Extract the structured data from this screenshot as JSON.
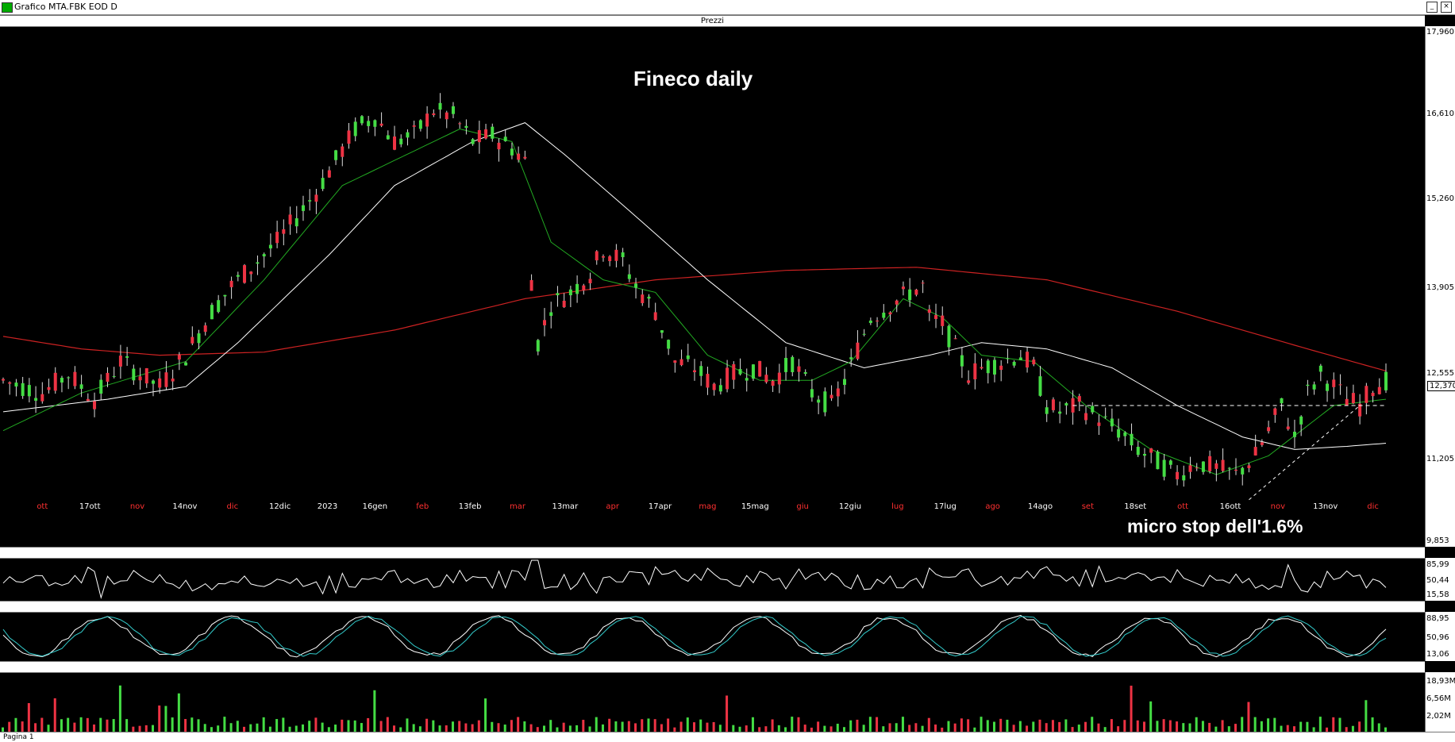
{
  "window": {
    "title": "Grafico MTA.FBK EOD D"
  },
  "panels": {
    "price_label": "Prezzi"
  },
  "status": {
    "text": "Pagina 1"
  },
  "annotations": {
    "title": "Fineco daily",
    "note": "micro stop dell'1.6%"
  },
  "colors": {
    "up": "#44dd44",
    "down": "#ee3344",
    "ma_fast": "#22aa22",
    "ma_mid": "#ffffff",
    "ma_slow": "#cc2222",
    "osc1": "#ffffff",
    "osc2_a": "#ffffff",
    "osc2_b": "#33cccc"
  },
  "chart_data": [
    {
      "type": "candlestick",
      "panel": "Prezzi",
      "y_ticks": [
        "17,960",
        "16,610",
        "15,260",
        "13,905",
        "12,555",
        "11,205",
        "9,853"
      ],
      "ylim": [
        9.853,
        17.96
      ],
      "last_price": "12,370",
      "support_line": 12.0,
      "x_tick_labels": [
        {
          "text": "ott",
          "color": "red"
        },
        {
          "text": "17ott",
          "color": "white"
        },
        {
          "text": "nov",
          "color": "red"
        },
        {
          "text": "14nov",
          "color": "white"
        },
        {
          "text": "dic",
          "color": "red"
        },
        {
          "text": "12dic",
          "color": "white"
        },
        {
          "text": "2023",
          "color": "white"
        },
        {
          "text": "16gen",
          "color": "white"
        },
        {
          "text": "feb",
          "color": "red"
        },
        {
          "text": "13feb",
          "color": "white"
        },
        {
          "text": "mar",
          "color": "red"
        },
        {
          "text": "13mar",
          "color": "white"
        },
        {
          "text": "apr",
          "color": "red"
        },
        {
          "text": "17apr",
          "color": "white"
        },
        {
          "text": "mag",
          "color": "red"
        },
        {
          "text": "15mag",
          "color": "white"
        },
        {
          "text": "giu",
          "color": "red"
        },
        {
          "text": "12giu",
          "color": "white"
        },
        {
          "text": "lug",
          "color": "red"
        },
        {
          "text": "17lug",
          "color": "white"
        },
        {
          "text": "ago",
          "color": "red"
        },
        {
          "text": "14ago",
          "color": "white"
        },
        {
          "text": "set",
          "color": "red"
        },
        {
          "text": "18set",
          "color": "white"
        },
        {
          "text": "ott",
          "color": "red"
        },
        {
          "text": "16ott",
          "color": "white"
        },
        {
          "text": "nov",
          "color": "red"
        },
        {
          "text": "13nov",
          "color": "white"
        },
        {
          "text": "dic",
          "color": "red"
        }
      ],
      "close_path": [
        [
          0,
          12.4
        ],
        [
          6,
          12.2
        ],
        [
          10,
          12.5
        ],
        [
          14,
          12.1
        ],
        [
          18,
          12.7
        ],
        [
          24,
          12.3
        ],
        [
          28,
          12.8
        ],
        [
          32,
          13.5
        ],
        [
          35,
          13.9
        ],
        [
          38,
          14.2
        ],
        [
          42,
          14.6
        ],
        [
          45,
          15.0
        ],
        [
          48,
          15.4
        ],
        [
          51,
          15.9
        ],
        [
          54,
          16.4
        ],
        [
          57,
          16.6
        ],
        [
          60,
          16.2
        ],
        [
          63,
          16.3
        ],
        [
          66,
          16.7
        ],
        [
          69,
          16.6
        ],
        [
          72,
          16.2
        ],
        [
          75,
          16.3
        ],
        [
          78,
          16.1
        ],
        [
          80,
          15.9
        ],
        [
          81,
          14.0
        ],
        [
          82,
          13.0
        ],
        [
          84,
          13.6
        ],
        [
          87,
          13.8
        ],
        [
          90,
          14.1
        ],
        [
          92,
          14.5
        ],
        [
          95,
          14.3
        ],
        [
          97,
          13.9
        ],
        [
          100,
          13.5
        ],
        [
          103,
          12.7
        ],
        [
          106,
          12.6
        ],
        [
          109,
          12.3
        ],
        [
          112,
          12.5
        ],
        [
          115,
          12.6
        ],
        [
          118,
          12.4
        ],
        [
          121,
          12.7
        ],
        [
          124,
          12.2
        ],
        [
          127,
          12.0
        ],
        [
          129,
          12.4
        ],
        [
          131,
          12.9
        ],
        [
          133,
          13.4
        ],
        [
          136,
          13.6
        ],
        [
          139,
          13.8
        ],
        [
          141,
          13.9
        ],
        [
          142,
          13.4
        ],
        [
          144,
          13.3
        ],
        [
          146,
          12.9
        ],
        [
          148,
          12.5
        ],
        [
          150,
          12.6
        ],
        [
          153,
          12.7
        ],
        [
          156,
          12.8
        ],
        [
          158,
          12.6
        ],
        [
          160,
          12.0
        ],
        [
          162,
          11.9
        ],
        [
          165,
          12.0
        ],
        [
          168,
          11.8
        ],
        [
          171,
          11.6
        ],
        [
          174,
          11.3
        ],
        [
          177,
          11.1
        ],
        [
          180,
          10.9
        ],
        [
          183,
          11.1
        ],
        [
          186,
          11.0
        ],
        [
          189,
          10.9
        ],
        [
          192,
          11.2
        ],
        [
          194,
          11.6
        ],
        [
          196,
          12.0
        ],
        [
          198,
          11.5
        ],
        [
          200,
          12.2
        ],
        [
          202,
          12.5
        ],
        [
          204,
          12.3
        ],
        [
          206,
          12.1
        ],
        [
          208,
          12.0
        ],
        [
          210,
          12.3
        ],
        [
          212,
          12.4
        ]
      ],
      "ma_fast_path": [
        [
          0,
          11.6
        ],
        [
          12,
          12.2
        ],
        [
          28,
          12.7
        ],
        [
          40,
          14.0
        ],
        [
          52,
          15.5
        ],
        [
          60,
          15.9
        ],
        [
          70,
          16.4
        ],
        [
          78,
          16.2
        ],
        [
          84,
          14.6
        ],
        [
          92,
          14.0
        ],
        [
          100,
          13.8
        ],
        [
          108,
          12.8
        ],
        [
          116,
          12.4
        ],
        [
          124,
          12.4
        ],
        [
          130,
          12.7
        ],
        [
          138,
          13.7
        ],
        [
          144,
          13.4
        ],
        [
          150,
          12.8
        ],
        [
          158,
          12.7
        ],
        [
          166,
          12.0
        ],
        [
          176,
          11.3
        ],
        [
          186,
          10.9
        ],
        [
          194,
          11.2
        ],
        [
          204,
          12.0
        ],
        [
          212,
          12.1
        ]
      ],
      "ma_mid_path": [
        [
          0,
          11.9
        ],
        [
          16,
          12.1
        ],
        [
          28,
          12.3
        ],
        [
          36,
          13.0
        ],
        [
          50,
          14.4
        ],
        [
          60,
          15.5
        ],
        [
          72,
          16.2
        ],
        [
          80,
          16.5
        ],
        [
          86,
          16.0
        ],
        [
          96,
          15.1
        ],
        [
          108,
          14.0
        ],
        [
          120,
          13.0
        ],
        [
          132,
          12.6
        ],
        [
          142,
          12.8
        ],
        [
          150,
          13.0
        ],
        [
          160,
          12.9
        ],
        [
          170,
          12.6
        ],
        [
          180,
          12.0
        ],
        [
          190,
          11.5
        ],
        [
          198,
          11.3
        ],
        [
          206,
          11.35
        ],
        [
          212,
          11.4
        ]
      ],
      "ma_slow_path": [
        [
          0,
          13.1
        ],
        [
          12,
          12.9
        ],
        [
          24,
          12.8
        ],
        [
          40,
          12.85
        ],
        [
          60,
          13.2
        ],
        [
          80,
          13.7
        ],
        [
          100,
          14.0
        ],
        [
          120,
          14.15
        ],
        [
          140,
          14.2
        ],
        [
          160,
          14.0
        ],
        [
          180,
          13.5
        ],
        [
          200,
          12.9
        ],
        [
          212,
          12.55
        ]
      ]
    },
    {
      "type": "line",
      "panel": "oscillator-1",
      "y_ticks": [
        "85,99",
        "50,44",
        "15,58"
      ]
    },
    {
      "type": "line",
      "panel": "oscillator-2",
      "y_ticks": [
        "88,95",
        "50,96",
        "13,06"
      ]
    },
    {
      "type": "bar",
      "panel": "volume",
      "y_ticks": [
        "18,93M",
        "6,56M",
        "2,02M"
      ]
    }
  ]
}
